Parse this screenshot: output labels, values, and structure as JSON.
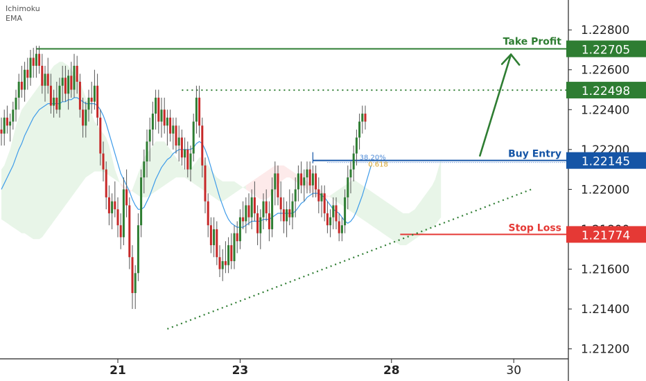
{
  "indicators": [
    "Ichimoku",
    "EMA"
  ],
  "chart_data": {
    "type": "candlestick",
    "title": "",
    "xlabel": "",
    "ylabel": "",
    "ylim": [
      1.2115,
      1.2295
    ],
    "y_ticks": [
      "1.22800",
      "1.22600",
      "1.22400",
      "1.22200",
      "1.22000",
      "1.21800",
      "1.21600",
      "1.21400",
      "1.21200"
    ],
    "x_ticks": [
      {
        "label": "21",
        "idx": 40
      },
      {
        "label": "23",
        "idx": 82
      },
      {
        "label": "28",
        "idx": 134
      },
      {
        "label": "30",
        "idx": 176
      }
    ],
    "levels": [
      {
        "key": "take_profit",
        "label": "Take Profit",
        "value": "1.22705",
        "price": 1.22705,
        "color": "#2e7d32",
        "style": "solid"
      },
      {
        "key": "resistance",
        "label": "",
        "value": "1.22498",
        "price": 1.22498,
        "color": "#2e7d32",
        "style": "dotted"
      },
      {
        "key": "buy_entry",
        "label": "Buy Entry",
        "value": "1.22145",
        "price": 1.22145,
        "color": "#1555a6",
        "style": "solid"
      },
      {
        "key": "stop_loss",
        "label": "Stop Loss",
        "value": "1.21774",
        "price": 1.21774,
        "color": "#e53935",
        "style": "solid"
      }
    ],
    "fib_labels": [
      "38.20%",
      "0.618"
    ],
    "ohlc": [
      [
        1.223,
        1.2236,
        1.2222,
        1.2228
      ],
      [
        1.2228,
        1.224,
        1.2222,
        1.2236
      ],
      [
        1.2236,
        1.2242,
        1.2228,
        1.2232
      ],
      [
        1.2232,
        1.2238,
        1.2224,
        1.2234
      ],
      [
        1.2234,
        1.2244,
        1.223,
        1.224
      ],
      [
        1.224,
        1.225,
        1.2234,
        1.2246
      ],
      [
        1.2246,
        1.2258,
        1.224,
        1.2254
      ],
      [
        1.2254,
        1.2262,
        1.2246,
        1.225
      ],
      [
        1.225,
        1.2264,
        1.2244,
        1.226
      ],
      [
        1.226,
        1.2266,
        1.225,
        1.2256
      ],
      [
        1.2256,
        1.227,
        1.2252,
        1.2266
      ],
      [
        1.2266,
        1.2271,
        1.2256,
        1.2262
      ],
      [
        1.2262,
        1.2272,
        1.2256,
        1.2268
      ],
      [
        1.2268,
        1.2272,
        1.2258,
        1.2262
      ],
      [
        1.2262,
        1.2268,
        1.2248,
        1.2252
      ],
      [
        1.2252,
        1.2262,
        1.2244,
        1.2258
      ],
      [
        1.2258,
        1.2266,
        1.2248,
        1.2252
      ],
      [
        1.2252,
        1.2258,
        1.2238,
        1.2242
      ],
      [
        1.2242,
        1.225,
        1.2236,
        1.2246
      ],
      [
        1.2246,
        1.2254,
        1.2238,
        1.224
      ],
      [
        1.224,
        1.2256,
        1.2236,
        1.2252
      ],
      [
        1.2252,
        1.2262,
        1.2244,
        1.2256
      ],
      [
        1.2256,
        1.2262,
        1.2244,
        1.2248
      ],
      [
        1.2248,
        1.226,
        1.224,
        1.2257
      ],
      [
        1.2257,
        1.2264,
        1.2246,
        1.225
      ],
      [
        1.225,
        1.2268,
        1.2246,
        1.2262
      ],
      [
        1.2262,
        1.2267,
        1.2248,
        1.2254
      ],
      [
        1.2254,
        1.2258,
        1.2236,
        1.224
      ],
      [
        1.224,
        1.2246,
        1.2226,
        1.2232
      ],
      [
        1.2232,
        1.2244,
        1.2226,
        1.224
      ],
      [
        1.224,
        1.225,
        1.2234,
        1.2246
      ],
      [
        1.2246,
        1.2254,
        1.2238,
        1.2244
      ],
      [
        1.2244,
        1.226,
        1.224,
        1.2252
      ],
      [
        1.2252,
        1.2258,
        1.2232,
        1.2236
      ],
      [
        1.2236,
        1.224,
        1.2212,
        1.2218
      ],
      [
        1.2218,
        1.2224,
        1.2204,
        1.221
      ],
      [
        1.221,
        1.2214,
        1.219,
        1.2196
      ],
      [
        1.2196,
        1.2202,
        1.2182,
        1.2188
      ],
      [
        1.2188,
        1.2198,
        1.218,
        1.2194
      ],
      [
        1.2194,
        1.2204,
        1.2186,
        1.219
      ],
      [
        1.219,
        1.2196,
        1.2176,
        1.2182
      ],
      [
        1.2182,
        1.2188,
        1.217,
        1.2176
      ],
      [
        1.2176,
        1.2206,
        1.2172,
        1.22
      ],
      [
        1.22,
        1.221,
        1.2186,
        1.2192
      ],
      [
        1.2192,
        1.2196,
        1.216,
        1.2166
      ],
      [
        1.2166,
        1.2172,
        1.214,
        1.2148
      ],
      [
        1.2148,
        1.2162,
        1.214,
        1.2158
      ],
      [
        1.2158,
        1.2188,
        1.2154,
        1.2182
      ],
      [
        1.2182,
        1.221,
        1.2176,
        1.2206
      ],
      [
        1.2206,
        1.222,
        1.2198,
        1.2214
      ],
      [
        1.2214,
        1.223,
        1.2206,
        1.2224
      ],
      [
        1.2224,
        1.2236,
        1.2214,
        1.223
      ],
      [
        1.223,
        1.2244,
        1.2222,
        1.2238
      ],
      [
        1.2238,
        1.225,
        1.223,
        1.2246
      ],
      [
        1.2246,
        1.225,
        1.2228,
        1.2234
      ],
      [
        1.2234,
        1.2246,
        1.2226,
        1.224
      ],
      [
        1.224,
        1.2246,
        1.2228,
        1.2232
      ],
      [
        1.2232,
        1.224,
        1.2222,
        1.2236
      ],
      [
        1.2236,
        1.224,
        1.2224,
        1.2228
      ],
      [
        1.2228,
        1.2236,
        1.222,
        1.2232
      ],
      [
        1.2232,
        1.2236,
        1.2218,
        1.2222
      ],
      [
        1.2222,
        1.2232,
        1.2214,
        1.2226
      ],
      [
        1.2226,
        1.223,
        1.2212,
        1.2216
      ],
      [
        1.2216,
        1.2226,
        1.221,
        1.222
      ],
      [
        1.222,
        1.2224,
        1.2206,
        1.221
      ],
      [
        1.221,
        1.2222,
        1.2204,
        1.2218
      ],
      [
        1.2218,
        1.2238,
        1.2214,
        1.2234
      ],
      [
        1.2234,
        1.2252,
        1.2228,
        1.2246
      ],
      [
        1.2246,
        1.2252,
        1.2226,
        1.2232
      ],
      [
        1.2232,
        1.2236,
        1.2206,
        1.2212
      ],
      [
        1.2212,
        1.2216,
        1.2188,
        1.2194
      ],
      [
        1.2194,
        1.2198,
        1.2176,
        1.2182
      ],
      [
        1.2182,
        1.2186,
        1.2168,
        1.2172
      ],
      [
        1.2172,
        1.2186,
        1.2166,
        1.218
      ],
      [
        1.218,
        1.2184,
        1.2162,
        1.2166
      ],
      [
        1.2166,
        1.2172,
        1.2156,
        1.216
      ],
      [
        1.216,
        1.217,
        1.2154,
        1.2164
      ],
      [
        1.2164,
        1.2174,
        1.2158,
        1.2162
      ],
      [
        1.2162,
        1.2176,
        1.2158,
        1.2172
      ],
      [
        1.2172,
        1.2178,
        1.216,
        1.2164
      ],
      [
        1.2164,
        1.2182,
        1.216,
        1.2178
      ],
      [
        1.2178,
        1.2184,
        1.2168,
        1.2174
      ],
      [
        1.2174,
        1.219,
        1.217,
        1.2186
      ],
      [
        1.2186,
        1.2194,
        1.218,
        1.2184
      ],
      [
        1.2184,
        1.2196,
        1.2178,
        1.2192
      ],
      [
        1.2192,
        1.2198,
        1.2182,
        1.2186
      ],
      [
        1.2186,
        1.22,
        1.218,
        1.2196
      ],
      [
        1.2196,
        1.2204,
        1.2184,
        1.2188
      ],
      [
        1.2188,
        1.2192,
        1.2172,
        1.2178
      ],
      [
        1.2178,
        1.219,
        1.217,
        1.2186
      ],
      [
        1.2186,
        1.2198,
        1.218,
        1.2194
      ],
      [
        1.2194,
        1.22,
        1.2184,
        1.2188
      ],
      [
        1.2188,
        1.2194,
        1.2174,
        1.218
      ],
      [
        1.218,
        1.2206,
        1.2176,
        1.22
      ],
      [
        1.22,
        1.2214,
        1.2192,
        1.2208
      ],
      [
        1.2208,
        1.2212,
        1.2192,
        1.2196
      ],
      [
        1.2196,
        1.2204,
        1.2184,
        1.219
      ],
      [
        1.219,
        1.2196,
        1.2178,
        1.2184
      ],
      [
        1.2184,
        1.2194,
        1.2176,
        1.219
      ],
      [
        1.219,
        1.22,
        1.2182,
        1.2186
      ],
      [
        1.2186,
        1.2198,
        1.218,
        1.2194
      ],
      [
        1.2194,
        1.2206,
        1.2186,
        1.22
      ],
      [
        1.22,
        1.2212,
        1.2194,
        1.2208
      ],
      [
        1.2208,
        1.2214,
        1.2198,
        1.2202
      ],
      [
        1.2202,
        1.221,
        1.2194,
        1.2206
      ],
      [
        1.2206,
        1.2214,
        1.2198,
        1.221
      ],
      [
        1.221,
        1.2214,
        1.2198,
        1.2202
      ],
      [
        1.2202,
        1.2212,
        1.2196,
        1.2208
      ],
      [
        1.2208,
        1.2212,
        1.2196,
        1.22
      ],
      [
        1.22,
        1.2206,
        1.2188,
        1.2194
      ],
      [
        1.2194,
        1.2202,
        1.2186,
        1.2198
      ],
      [
        1.2198,
        1.2202,
        1.2184,
        1.2188
      ],
      [
        1.2188,
        1.2194,
        1.2178,
        1.2182
      ],
      [
        1.2182,
        1.219,
        1.2176,
        1.2186
      ],
      [
        1.2186,
        1.2196,
        1.218,
        1.2192
      ],
      [
        1.2192,
        1.2196,
        1.218,
        1.2184
      ],
      [
        1.2184,
        1.2188,
        1.2174,
        1.2178
      ],
      [
        1.2178,
        1.2186,
        1.2174,
        1.2182
      ],
      [
        1.2182,
        1.22,
        1.2178,
        1.2196
      ],
      [
        1.2196,
        1.2212,
        1.219,
        1.2206
      ],
      [
        1.2206,
        1.2214,
        1.2198,
        1.221
      ],
      [
        1.221,
        1.2222,
        1.2204,
        1.2218
      ],
      [
        1.2218,
        1.223,
        1.2212,
        1.2226
      ],
      [
        1.2226,
        1.2238,
        1.222,
        1.2234
      ],
      [
        1.2234,
        1.2242,
        1.2228,
        1.2238
      ],
      [
        1.2238,
        1.2242,
        1.223,
        1.2234
      ]
    ],
    "ema": [
      1.22,
      1.2203,
      1.2206,
      1.2209,
      1.2212,
      1.2216,
      1.222,
      1.2223,
      1.2227,
      1.223,
      1.2233,
      1.2236,
      1.2238,
      1.224,
      1.2241,
      1.2242,
      1.2243,
      1.2243,
      1.2243,
      1.2243,
      1.2243,
      1.2244,
      1.2244,
      1.2245,
      1.2245,
      1.2246,
      1.2246,
      1.2245,
      1.2244,
      1.2243,
      1.2243,
      1.2243,
      1.2243,
      1.2242,
      1.224,
      1.2237,
      1.2233,
      1.2228,
      1.2223,
      1.2218,
      1.2213,
      1.2208,
      1.2205,
      1.2202,
      1.2199,
      1.2195,
      1.2192,
      1.219,
      1.219,
      1.2191,
      1.2194,
      1.2197,
      1.2201,
      1.2205,
      1.2208,
      1.2211,
      1.2213,
      1.2215,
      1.2216,
      1.2218,
      1.2219,
      1.222,
      1.222,
      1.222,
      1.222,
      1.222,
      1.2221,
      1.2223,
      1.2224,
      1.2223,
      1.222,
      1.2216,
      1.2211,
      1.2206,
      1.2201,
      1.2196,
      1.2192,
      1.2188,
      1.2185,
      1.2183,
      1.2182,
      1.2181,
      1.2181,
      1.2181,
      1.2182,
      1.2183,
      1.2184,
      1.2184,
      1.2184,
      1.2184,
      1.2185,
      1.2185,
      1.2185,
      1.2186,
      1.2187,
      1.2188,
      1.2188,
      1.2188,
      1.2188,
      1.2188,
      1.2188,
      1.2189,
      1.2191,
      1.2193,
      1.2194,
      1.2196,
      1.2197,
      1.2198,
      1.2198,
      1.2198,
      1.2197,
      1.2196,
      1.2194,
      1.2192,
      1.219,
      1.2189,
      1.2188,
      1.2186,
      1.2184,
      1.2183,
      1.2184,
      1.2186,
      1.2189,
      1.2193,
      1.2197,
      1.2202,
      1.2207,
      1.2212
    ],
    "span_a": [
      1.221,
      1.2212,
      1.2216,
      1.222,
      1.2226,
      1.2232,
      1.2236,
      1.224,
      1.2242,
      1.2244,
      1.2246,
      1.2248,
      1.225,
      1.2252,
      1.2254,
      1.2256,
      1.2258,
      1.226,
      1.2262,
      1.2263,
      1.2264,
      1.2264,
      1.2263,
      1.2262,
      1.226,
      1.2258,
      1.2256,
      1.2254,
      1.225,
      1.2246,
      1.2242,
      1.2238,
      1.2234,
      1.2232,
      1.223,
      1.2228,
      1.2226,
      1.2222,
      1.2216,
      1.221,
      1.2206,
      1.2202,
      1.22,
      1.2198,
      1.2198,
      1.22,
      1.2204,
      1.2208,
      1.2212,
      1.2216,
      1.2218,
      1.222,
      1.2222,
      1.2224,
      1.2224,
      1.2224,
      1.2224,
      1.2222,
      1.222,
      1.2218,
      1.2216,
      1.2214,
      1.2212,
      1.221,
      1.221,
      1.221,
      1.2212,
      1.2214,
      1.2216,
      1.2216,
      1.2214,
      1.2212,
      1.221,
      1.2208,
      1.2206,
      1.2205,
      1.2204,
      1.2204,
      1.2204,
      1.2204,
      1.2204,
      1.2203,
      1.2202,
      1.2201,
      1.22,
      1.2199,
      1.2198,
      1.2197,
      1.2196,
      1.2195,
      1.2195,
      1.2195,
      1.2196,
      1.2198,
      1.22,
      1.2202,
      1.2204,
      1.2205,
      1.2206,
      1.2206,
      1.2205,
      1.2204,
      1.2203,
      1.2202,
      1.2201,
      1.22,
      1.2199,
      1.2198,
      1.2197,
      1.2196,
      1.2195,
      1.2195,
      1.2196,
      1.2197,
      1.2198,
      1.2199,
      1.22,
      1.2201,
      1.2202,
      1.2203,
      1.2204,
      1.2205,
      1.2204,
      1.2203,
      1.2202,
      1.2201,
      1.22,
      1.2199,
      1.2198,
      1.2197,
      1.2196,
      1.2195,
      1.2194,
      1.2193,
      1.2192,
      1.2191,
      1.219,
      1.2189,
      1.2188,
      1.2188,
      1.2188,
      1.2189,
      1.219,
      1.2192,
      1.2194,
      1.2196,
      1.2198,
      1.22,
      1.2202,
      1.2205,
      1.221,
      1.2215
    ],
    "span_b": [
      1.2185,
      1.2184,
      1.2183,
      1.2182,
      1.2181,
      1.218,
      1.2179,
      1.2178,
      1.2178,
      1.2177,
      1.2176,
      1.2175,
      1.2175,
      1.2175,
      1.2176,
      1.2178,
      1.218,
      1.2182,
      1.2184,
      1.2186,
      1.2188,
      1.219,
      1.2192,
      1.2194,
      1.2196,
      1.2198,
      1.22,
      1.2202,
      1.2204,
      1.2206,
      1.2207,
      1.2208,
      1.2209,
      1.2209,
      1.2209,
      1.2209,
      1.2208,
      1.2207,
      1.2206,
      1.2205,
      1.2204,
      1.2203,
      1.2202,
      1.2201,
      1.22,
      1.2199,
      1.2198,
      1.2197,
      1.2196,
      1.2196,
      1.2196,
      1.2197,
      1.2198,
      1.2199,
      1.22,
      1.2201,
      1.2202,
      1.2203,
      1.2204,
      1.2205,
      1.2206,
      1.2206,
      1.2206,
      1.2206,
      1.2205,
      1.2204,
      1.2203,
      1.2202,
      1.2201,
      1.22,
      1.2199,
      1.2198,
      1.2197,
      1.2196,
      1.2195,
      1.2194,
      1.2194,
      1.2195,
      1.2196,
      1.2197,
      1.2198,
      1.2199,
      1.22,
      1.2201,
      1.2202,
      1.2203,
      1.2204,
      1.2205,
      1.2206,
      1.2207,
      1.2208,
      1.2209,
      1.221,
      1.2211,
      1.2212,
      1.2212,
      1.2212,
      1.2212,
      1.2211,
      1.221,
      1.2209,
      1.2208,
      1.2207,
      1.2206,
      1.2205,
      1.2204,
      1.2203,
      1.2202,
      1.2201,
      1.22,
      1.2199,
      1.2198,
      1.2197,
      1.2196,
      1.2195,
      1.2194,
      1.2193,
      1.2192,
      1.2191,
      1.219,
      1.2189,
      1.2188,
      1.2187,
      1.2186,
      1.2185,
      1.2184,
      1.2183,
      1.2182,
      1.2181,
      1.218,
      1.2179,
      1.2178,
      1.2177,
      1.2176,
      1.2175,
      1.2174,
      1.2173,
      1.2172,
      1.2172,
      1.2172,
      1.2173,
      1.2174,
      1.2175,
      1.2176,
      1.2177,
      1.2178,
      1.2179,
      1.218,
      1.2181,
      1.2182,
      1.2184,
      1.2186
    ],
    "trendlines": [
      {
        "from": [
          57,
          1.213
        ],
        "to": [
          182,
          1.22
        ]
      },
      {
        "from": [
          70,
          1.22498
        ],
        "to": [
          205,
          1.22498
        ]
      }
    ],
    "arrow": {
      "from": [
        162,
        1.22155
      ],
      "to": [
        176,
        1.22705
      ]
    },
    "colors": {
      "up": "#26a69a",
      "down": "#ef5350"
    }
  }
}
